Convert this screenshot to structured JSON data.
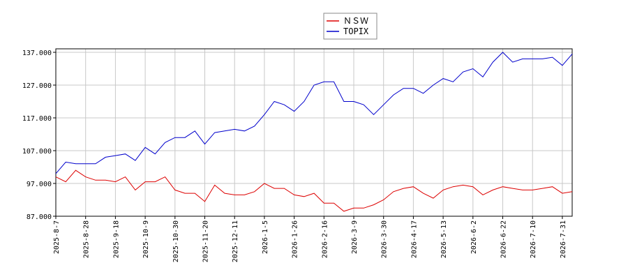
{
  "chart_data": {
    "type": "line",
    "categories": [
      "2025-8-7",
      null,
      null,
      "2025-8-28",
      null,
      null,
      "2025-9-18",
      null,
      null,
      "2025-10-9",
      null,
      null,
      "2025-10-30",
      null,
      null,
      "2025-11-20",
      null,
      null,
      "2025-12-11",
      null,
      null,
      "2026-1-5",
      null,
      null,
      "2026-1-26",
      null,
      null,
      "2026-2-16",
      null,
      null,
      "2026-3-9",
      null,
      null,
      "2026-3-30",
      null,
      null,
      "2026-4-17",
      null,
      null,
      "2026-5-13",
      null,
      null,
      "2026-6-2",
      null,
      null,
      "2026-6-22",
      null,
      null,
      "2026-7-10",
      null,
      null,
      "2026-7-31",
      null
    ],
    "series": [
      {
        "name": "ＮＳＷ",
        "color": "#dd0000",
        "values": [
          99,
          97.5,
          101,
          99,
          98,
          98,
          97.5,
          99,
          95,
          97.5,
          97.5,
          99,
          95,
          94,
          94,
          91.5,
          96.5,
          94,
          93.5,
          93.5,
          94.5,
          97,
          95.5,
          95.5,
          93.5,
          93,
          94,
          91,
          91,
          88.5,
          89.5,
          89.5,
          90.5,
          92,
          94.5,
          95.5,
          96,
          94,
          92.5,
          95,
          96,
          96.5,
          96,
          93.5,
          95,
          96,
          95.5,
          95,
          95,
          95.5,
          96,
          94,
          94.5
        ]
      },
      {
        "name": "TOPIX",
        "color": "#0000cc",
        "values": [
          100,
          103.5,
          103,
          103,
          103,
          105,
          105.5,
          106,
          104,
          108,
          106,
          109.5,
          111,
          111,
          113,
          109,
          112.5,
          113,
          113.5,
          113,
          114.5,
          118,
          122,
          121,
          119,
          122,
          127,
          128,
          128,
          122,
          122,
          121,
          118,
          121,
          124,
          126,
          126,
          124.5,
          127,
          129,
          128,
          131,
          132,
          129.5,
          134,
          137,
          134,
          135,
          135,
          135,
          135.5,
          133,
          136.5
        ]
      }
    ],
    "ylim": [
      87,
      137
    ],
    "yticks": [
      {
        "value": 87,
        "label": "87.000"
      },
      {
        "value": 97,
        "label": "97.000"
      },
      {
        "value": 107,
        "label": "107.000"
      },
      {
        "value": 117,
        "label": "117.000"
      },
      {
        "value": 127,
        "label": "127.000"
      },
      {
        "value": 137,
        "label": "137.000"
      }
    ],
    "grid": true
  }
}
